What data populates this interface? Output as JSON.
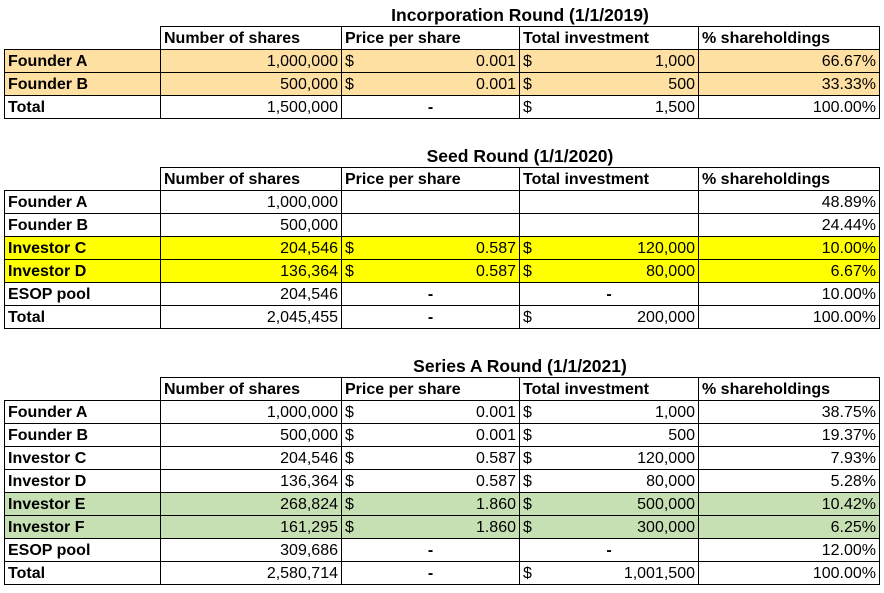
{
  "headers": [
    "Number of shares",
    "Price per share",
    "Total investment",
    "% shareholdings"
  ],
  "colors": {
    "orange": "#FFE0A3",
    "yellow": "#FFFF00",
    "green": "#C6E0B4"
  },
  "rounds": [
    {
      "title": "Incorporation Round (1/1/2019)",
      "rows": [
        {
          "label": "Founder A",
          "shares": "1,000,000",
          "price_cur": "$",
          "price": "0.001",
          "inv_cur": "$",
          "inv": "1,000",
          "pct": "66.67%",
          "highlight": "orange"
        },
        {
          "label": "Founder B",
          "shares": "500,000",
          "price_cur": "$",
          "price": "0.001",
          "inv_cur": "$",
          "inv": "500",
          "pct": "33.33%",
          "highlight": "orange"
        },
        {
          "label": "Total",
          "shares": "1,500,000",
          "price_dash": "-",
          "inv_cur": "$",
          "inv": "1,500",
          "pct": "100.00%"
        }
      ]
    },
    {
      "title": "Seed Round (1/1/2020)",
      "rows": [
        {
          "label": "Founder A",
          "shares": "1,000,000",
          "pct": "48.89%"
        },
        {
          "label": "Founder B",
          "shares": "500,000",
          "pct": "24.44%"
        },
        {
          "label": "Investor C",
          "shares": "204,546",
          "price_cur": "$",
          "price": "0.587",
          "inv_cur": "$",
          "inv": "120,000",
          "pct": "10.00%",
          "highlight": "yellow"
        },
        {
          "label": "Investor D",
          "shares": "136,364",
          "price_cur": "$",
          "price": "0.587",
          "inv_cur": "$",
          "inv": "80,000",
          "pct": "6.67%",
          "highlight": "yellow"
        },
        {
          "label": "ESOP pool",
          "shares": "204,546",
          "price_dash": "-",
          "inv_dash": "-",
          "pct": "10.00%"
        },
        {
          "label": "Total",
          "shares": "2,045,455",
          "price_dash": "-",
          "inv_cur": "$",
          "inv": "200,000",
          "pct": "100.00%"
        }
      ]
    },
    {
      "title": "Series A Round (1/1/2021)",
      "rows": [
        {
          "label": "Founder A",
          "shares": "1,000,000",
          "price_cur": "$",
          "price": "0.001",
          "inv_cur": "$",
          "inv": "1,000",
          "pct": "38.75%"
        },
        {
          "label": "Founder B",
          "shares": "500,000",
          "price_cur": "$",
          "price": "0.001",
          "inv_cur": "$",
          "inv": "500",
          "pct": "19.37%"
        },
        {
          "label": "Investor C",
          "shares": "204,546",
          "price_cur": "$",
          "price": "0.587",
          "inv_cur": "$",
          "inv": "120,000",
          "pct": "7.93%"
        },
        {
          "label": "Investor D",
          "shares": "136,364",
          "price_cur": "$",
          "price": "0.587",
          "inv_cur": "$",
          "inv": "80,000",
          "pct": "5.28%"
        },
        {
          "label": "Investor E",
          "shares": "268,824",
          "price_cur": "$",
          "price": "1.860",
          "inv_cur": "$",
          "inv": "500,000",
          "pct": "10.42%",
          "highlight": "green"
        },
        {
          "label": "Investor F",
          "shares": "161,295",
          "price_cur": "$",
          "price": "1.860",
          "inv_cur": "$",
          "inv": "300,000",
          "pct": "6.25%",
          "highlight": "green"
        },
        {
          "label": "ESOP pool",
          "shares": "309,686",
          "price_dash": "-",
          "inv_dash": "-",
          "pct": "12.00%"
        },
        {
          "label": "Total",
          "shares": "2,580,714",
          "price_dash": "-",
          "inv_cur": "$",
          "inv": "1,001,500",
          "pct": "100.00%"
        }
      ]
    }
  ]
}
